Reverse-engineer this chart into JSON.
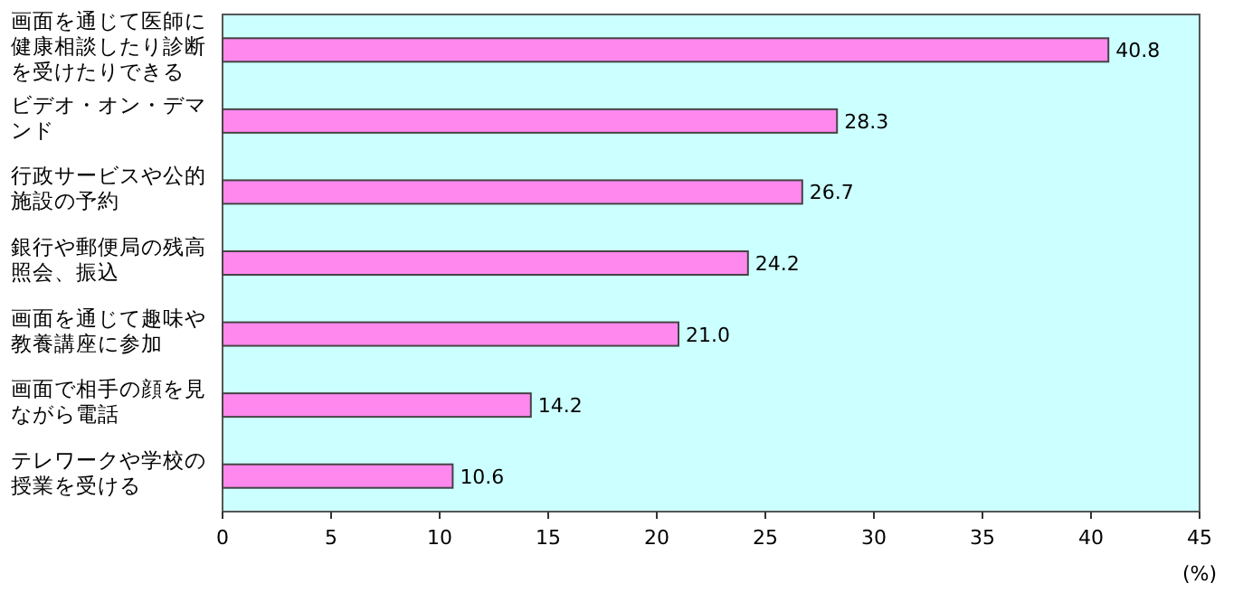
{
  "chart_data": {
    "type": "bar",
    "orientation": "horizontal",
    "categories": [
      "画面を通じて医師に健康相談したり診断を受けたりできる",
      "ビデオ・オン・デマンド",
      "行政サービスや公的施設の予約",
      "銀行や郵便局の残高照会、振込",
      "画面を通じて趣味や教養講座に参加",
      "画面で相手の顔を見ながら電話",
      "テレワークや学校の授業を受ける"
    ],
    "values": [
      40.8,
      28.3,
      26.7,
      24.2,
      21.0,
      14.2,
      10.6
    ],
    "value_labels": [
      "40.8",
      "28.3",
      "26.7",
      "24.2",
      "21.0",
      "14.2",
      "10.6"
    ],
    "color": "#ff88ee",
    "xlim": [
      0,
      45
    ],
    "xticks": [
      0,
      5,
      10,
      15,
      20,
      25,
      30,
      35,
      40,
      45
    ],
    "xlabel": "(%)",
    "grid": false
  }
}
